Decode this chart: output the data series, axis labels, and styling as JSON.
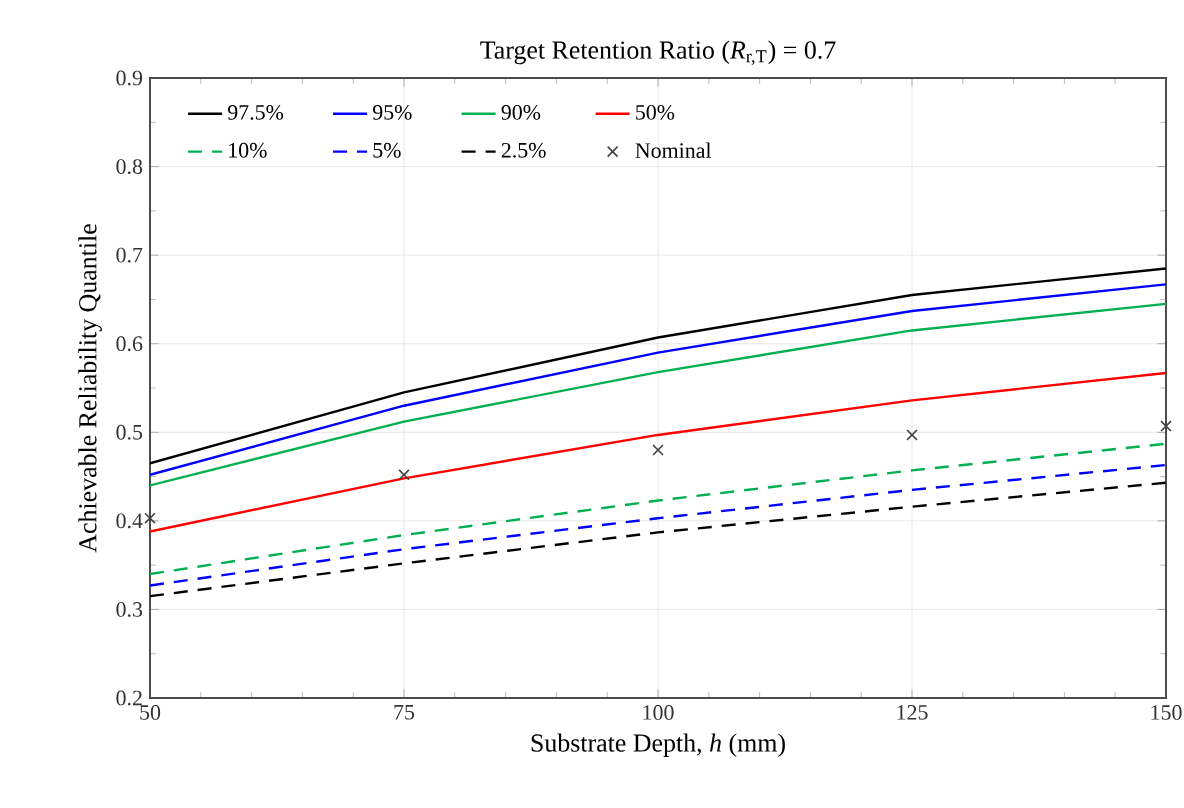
{
  "chart_data": {
    "type": "line",
    "title": "Target Retention Ratio (*R*$_{r,T}$) = 0.7",
    "xlabel": "Substrate Depth, *h* (mm)",
    "ylabel": "Achievable Reliability Quantile",
    "x": [
      50,
      75,
      100,
      125,
      150
    ],
    "series": [
      {
        "name": "97.5%",
        "color": "#000000",
        "line_style": "solid",
        "values": [
          0.465,
          0.545,
          0.607,
          0.655,
          0.685
        ]
      },
      {
        "name": "95%",
        "color": "#0000ff",
        "line_style": "solid",
        "values": [
          0.452,
          0.53,
          0.59,
          0.637,
          0.667
        ]
      },
      {
        "name": "90%",
        "color": "#00b050",
        "line_style": "solid",
        "values": [
          0.44,
          0.512,
          0.568,
          0.615,
          0.645
        ]
      },
      {
        "name": "50%",
        "color": "#ff0000",
        "line_style": "solid",
        "values": [
          0.388,
          0.448,
          0.497,
          0.536,
          0.567
        ]
      },
      {
        "name": "10%",
        "color": "#00b050",
        "line_style": "dashed",
        "values": [
          0.34,
          0.384,
          0.423,
          0.457,
          0.487
        ]
      },
      {
        "name": "5%",
        "color": "#0000ff",
        "line_style": "dashed",
        "values": [
          0.327,
          0.368,
          0.403,
          0.435,
          0.463
        ]
      },
      {
        "name": "2.5%",
        "color": "#000000",
        "line_style": "dashed",
        "values": [
          0.315,
          0.352,
          0.387,
          0.416,
          0.443
        ]
      },
      {
        "name": "Nominal",
        "type": "scatter",
        "marker": "cross",
        "color": "#404040",
        "values": [
          0.403,
          0.452,
          0.48,
          0.497,
          0.507
        ]
      }
    ],
    "xlim": [
      50,
      150
    ],
    "xticks": [
      50,
      75,
      100,
      125,
      150
    ],
    "ylim": [
      0.2,
      0.9
    ],
    "yticks": [
      0.2,
      0.3,
      0.4,
      0.5,
      0.6,
      0.7,
      0.8,
      0.9
    ],
    "grid": true,
    "legend": "top"
  }
}
